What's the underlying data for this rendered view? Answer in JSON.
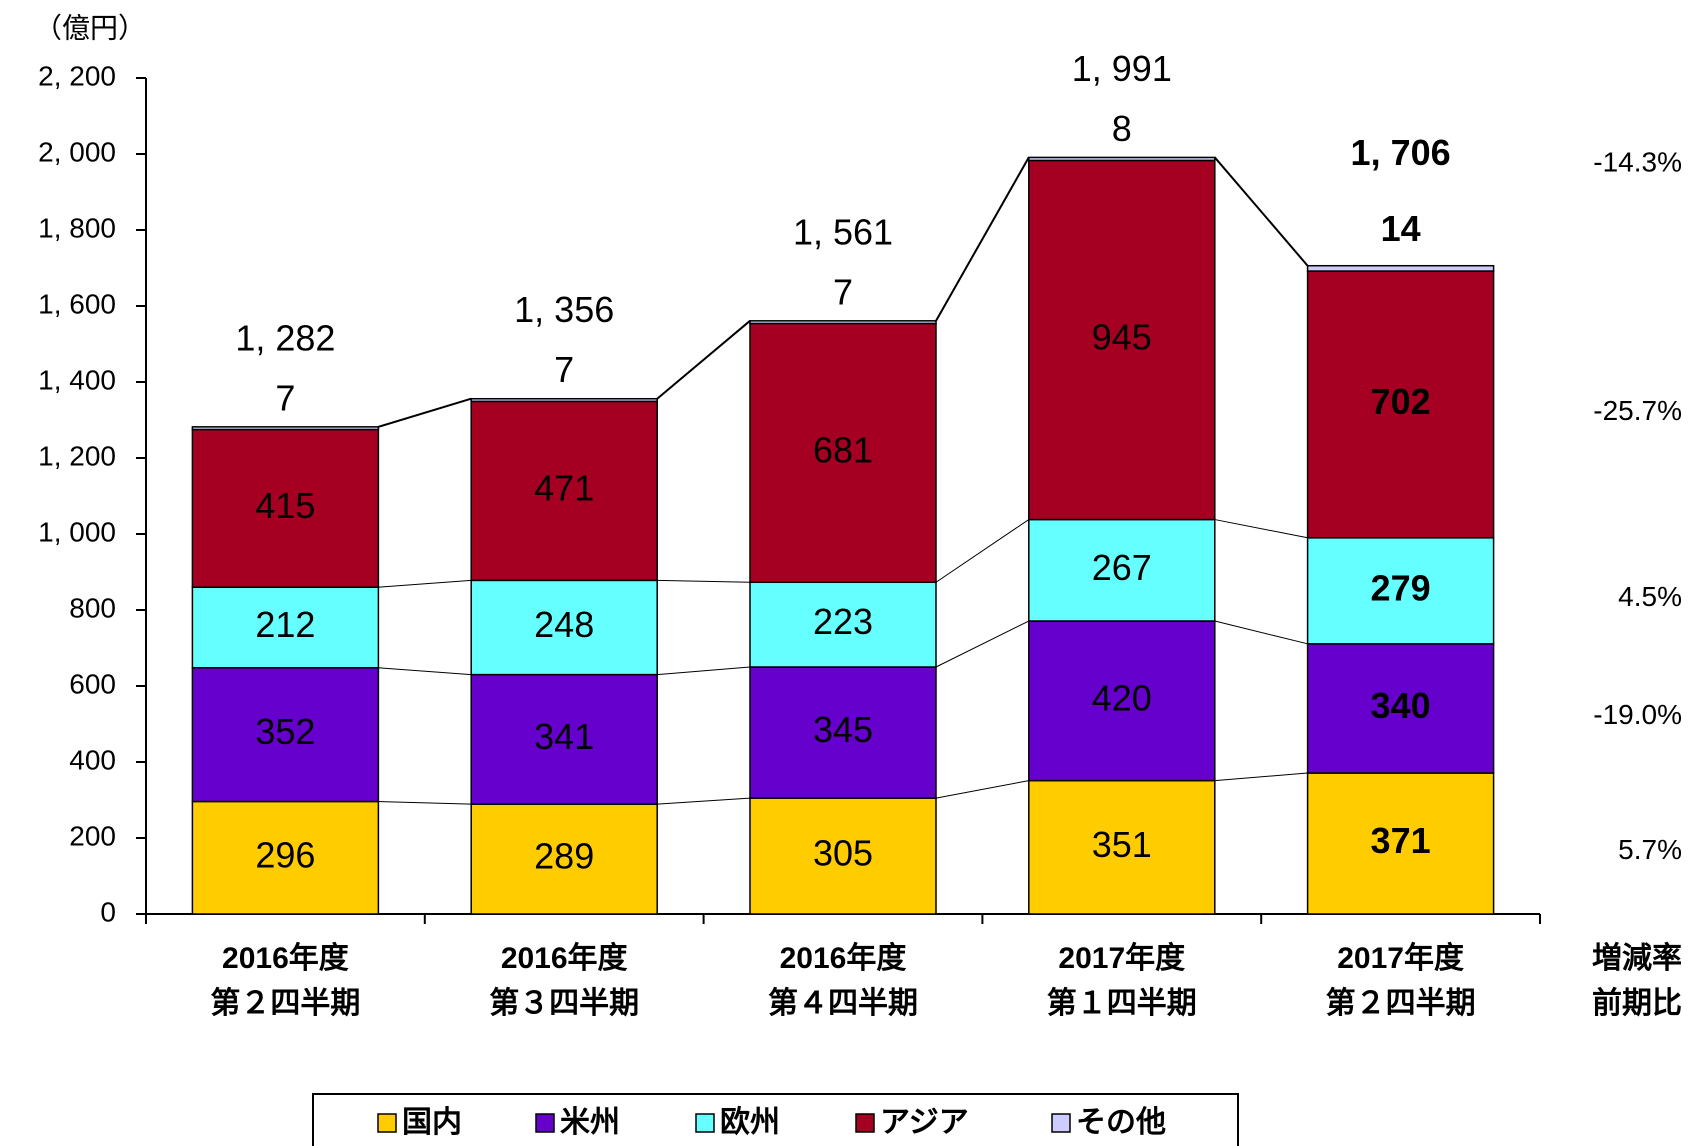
{
  "chart_data": {
    "type": "stacked_bar",
    "unit_label": "（億円）",
    "categories": [
      [
        "2016年度",
        "第２四半期"
      ],
      [
        "2016年度",
        "第３四半期"
      ],
      [
        "2016年度",
        "第４四半期"
      ],
      [
        "2017年度",
        "第１四半期"
      ],
      [
        "2017年度",
        "第２四半期"
      ]
    ],
    "series": [
      {
        "name": "国内",
        "color": "#ffcc00",
        "label_color": "#000000",
        "values": [
          296,
          289,
          305,
          351,
          371
        ],
        "change": {
          "value": 5.7,
          "label": "5.7%"
        }
      },
      {
        "name": "米州",
        "color": "#6600cc",
        "label_color": "#ffffff",
        "values": [
          352,
          341,
          345,
          420,
          340
        ],
        "change": {
          "value": -19.0,
          "label": "-19.0%"
        }
      },
      {
        "name": "欧州",
        "color": "#66ffff",
        "label_color": "#000000",
        "values": [
          212,
          248,
          223,
          267,
          279
        ],
        "change": {
          "value": 4.5,
          "label": "4.5%"
        }
      },
      {
        "name": "アジア",
        "color": "#a50021",
        "label_color": "#ffffff",
        "values": [
          415,
          471,
          681,
          945,
          702
        ],
        "change": {
          "value": -25.7,
          "label": "-25.7%"
        }
      },
      {
        "name": "その他",
        "color": "#ccccff",
        "label_color": "#000000",
        "values": [
          7,
          7,
          7,
          8,
          14
        ]
      }
    ],
    "totals": {
      "values": [
        1282,
        1356,
        1561,
        1991,
        1706
      ],
      "value_labels": [
        "1, 282",
        "1, 356",
        "1, 561",
        "1, 991",
        "1, 706"
      ],
      "change": {
        "value": -14.3,
        "label": "-14.3%"
      }
    },
    "change_header": [
      "増減率",
      "前期比"
    ],
    "ylim": [
      0,
      2200
    ],
    "yticks": [
      0,
      200,
      400,
      600,
      800,
      {
        "value": 1000,
        "label": "1, 000"
      },
      {
        "value": 1200,
        "label": "1, 200"
      },
      {
        "value": 1400,
        "label": "1, 400"
      },
      {
        "value": 1600,
        "label": "1, 600"
      },
      {
        "value": 1800,
        "label": "1, 800"
      },
      {
        "value": 2000,
        "label": "2, 000"
      },
      {
        "value": 2200,
        "label": "2, 200"
      }
    ]
  }
}
